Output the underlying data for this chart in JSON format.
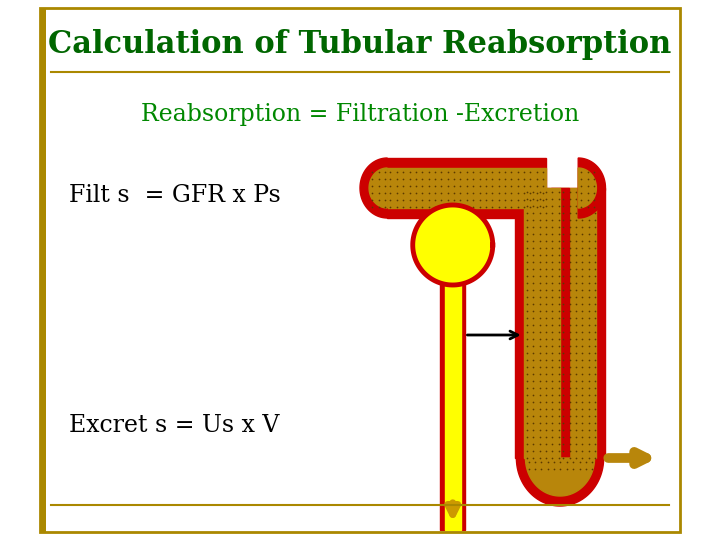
{
  "title": "Calculation of Tubular Reabsorption",
  "title_color": "#006600",
  "title_fontsize": 22,
  "line1": "Reabsorption = Filtration -Excretion",
  "line1_color": "#008800",
  "line1_fontsize": 17,
  "line2": "Filt s  = GFR x Ps",
  "line2_color": "#000000",
  "line2_fontsize": 17,
  "line3": "Excret s = Us x V",
  "line3_color": "#000000",
  "line3_fontsize": 17,
  "border_color": "#aa8800",
  "bg_color": "#ffffff",
  "red_color": "#cc0000",
  "yellow_color": "#ffff00",
  "tan_color": "#b8860b",
  "dot_color": "#5c3a00"
}
